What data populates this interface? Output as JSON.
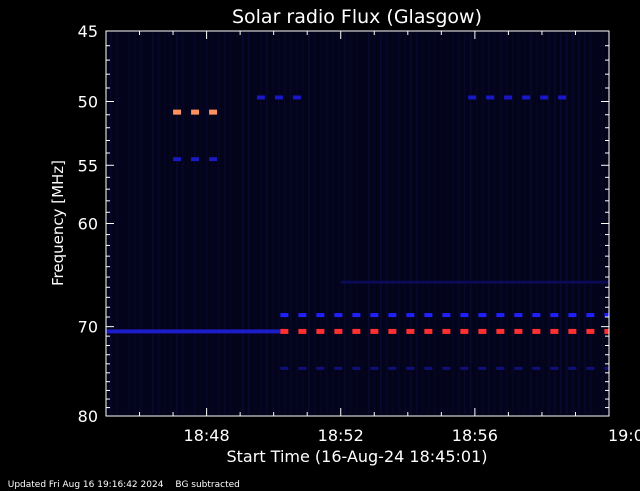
{
  "chart_data": {
    "type": "heatmap",
    "title": "Solar radio Flux (Glasgow)",
    "xlabel": "Start Time (16-Aug-24 18:45:01)",
    "ylabel": "Frequency [MHz]",
    "x_ticks": [
      "18:48",
      "18:52",
      "18:56",
      "19:00"
    ],
    "x_tick_minutes": [
      3,
      7,
      11,
      15
    ],
    "xlim_minutes": [
      0,
      15
    ],
    "y_ticks": [
      45,
      50,
      55,
      60,
      70,
      80
    ],
    "ylim_mhz": [
      45,
      80
    ],
    "yscale": "log",
    "background_color": "#03031a",
    "features": [
      {
        "kind": "band",
        "freq_mhz": 70.5,
        "start_min": 0,
        "end_min": 5.2,
        "intensity": "medium",
        "color": "#1c1cc8"
      },
      {
        "kind": "dashed",
        "freq_mhz": 70.5,
        "start_min": 5.2,
        "end_min": 15,
        "intensity": "high",
        "color": "#ff3030"
      },
      {
        "kind": "dashed",
        "freq_mhz": 68.8,
        "start_min": 5.2,
        "end_min": 15,
        "intensity": "medium",
        "color": "#2020ff"
      },
      {
        "kind": "dashed",
        "freq_mhz": 50.8,
        "start_min": 2.0,
        "end_min": 3.6,
        "intensity": "high",
        "color": "#ff9060"
      },
      {
        "kind": "dashed",
        "freq_mhz": 54.5,
        "start_min": 2.0,
        "end_min": 3.6,
        "intensity": "medium",
        "color": "#1a1ac0"
      },
      {
        "kind": "dashed",
        "freq_mhz": 49.7,
        "start_min": 4.5,
        "end_min": 6.0,
        "intensity": "medium",
        "color": "#1818c8"
      },
      {
        "kind": "dashed",
        "freq_mhz": 49.7,
        "start_min": 10.8,
        "end_min": 14.0,
        "intensity": "medium",
        "color": "#1818c8"
      },
      {
        "kind": "dashed",
        "freq_mhz": 74.5,
        "start_min": 5.2,
        "end_min": 15,
        "intensity": "low",
        "color": "#10107a"
      },
      {
        "kind": "band",
        "freq_mhz": 65.5,
        "start_min": 7.0,
        "end_min": 15,
        "intensity": "low",
        "color": "#0a0a55"
      }
    ]
  },
  "footer": {
    "updated": "Updated Fri Aug 16 19:16:42 2024",
    "note": "BG subtracted"
  }
}
